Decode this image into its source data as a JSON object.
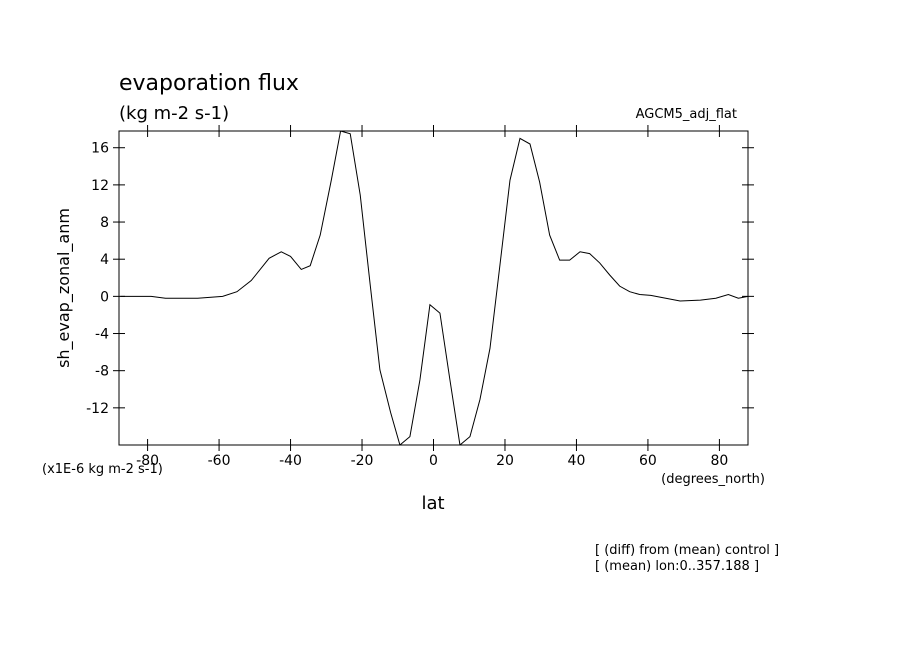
{
  "chart_data": {
    "type": "line",
    "title": "evaporation flux",
    "subtitle": "(kg m-2 s-1)",
    "dataset_label": "AGCM5_adj_flat",
    "y_label": "sh_evap_zonal_anm",
    "y_units": "(x1E-6 kg m-2 s-1)",
    "x_label": "lat",
    "x_units": "(degrees_north)",
    "annotations": [
      "[ (diff) from (mean) control ]",
      "[ (mean) lon:0..357.188 ]"
    ],
    "xlim": [
      -88,
      88
    ],
    "ylim": [
      -16,
      17.8
    ],
    "xticks": [
      -80,
      -60,
      -40,
      -20,
      0,
      20,
      40,
      60,
      80
    ],
    "yticks": [
      -12,
      -8,
      -4,
      0,
      4,
      8,
      12,
      16
    ],
    "color": "#000000",
    "x": [
      -87.6,
      -79,
      -75,
      -66,
      -59,
      -55,
      -51,
      -46,
      -42.6,
      -40,
      -37,
      -34.5,
      -31.7,
      -28.6,
      -26,
      -23.3,
      -20.5,
      -17.7,
      -15,
      -12,
      -9.4,
      -6.6,
      -3.8,
      -1,
      1.8,
      4.6,
      7.4,
      10.2,
      13,
      15.8,
      18.6,
      21.4,
      24.2,
      27,
      29.7,
      32.5,
      35.3,
      38.1,
      41,
      43.7,
      46.5,
      49.3,
      52.1,
      54.9,
      57.7,
      60.8,
      65,
      69,
      74.7,
      79,
      82.5,
      85.3,
      88
    ],
    "values": [
      0,
      0,
      -0.2,
      -0.2,
      0,
      0.5,
      1.7,
      4.1,
      4.8,
      4.3,
      2.9,
      3.3,
      6.6,
      12.5,
      17.8,
      17.5,
      10.9,
      1.2,
      -7.9,
      -12.5,
      -16,
      -15.1,
      -9,
      -0.9,
      -1.8,
      -9,
      -16,
      -15.1,
      -11.1,
      -5.6,
      3.4,
      12.5,
      17,
      16.4,
      12.3,
      6.6,
      3.9,
      3.9,
      4.8,
      4.6,
      3.6,
      2.3,
      1.1,
      0.5,
      0.2,
      0.1,
      -0.2,
      -0.5,
      -0.4,
      -0.2,
      0.2,
      -0.2,
      0
    ]
  }
}
